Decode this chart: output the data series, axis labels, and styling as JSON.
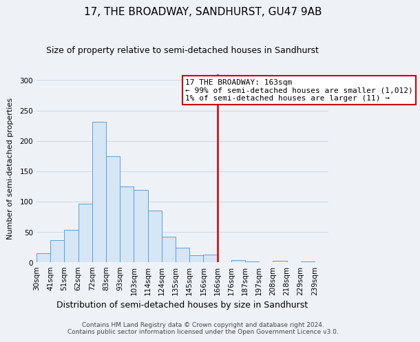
{
  "title": "17, THE BROADWAY, SANDHURST, GU47 9AB",
  "subtitle": "Size of property relative to semi-detached houses in Sandhurst",
  "xlabel": "Distribution of semi-detached houses by size in Sandhurst",
  "ylabel": "Number of semi-detached properties",
  "categories": [
    "30sqm",
    "41sqm",
    "51sqm",
    "62sqm",
    "72sqm",
    "83sqm",
    "93sqm",
    "103sqm",
    "114sqm",
    "124sqm",
    "135sqm",
    "145sqm",
    "156sqm",
    "166sqm",
    "176sqm",
    "187sqm",
    "197sqm",
    "208sqm",
    "218sqm",
    "229sqm",
    "239sqm"
  ],
  "values": [
    15,
    37,
    53,
    97,
    231,
    175,
    125,
    119,
    85,
    42,
    24,
    11,
    13,
    0,
    4,
    1,
    0,
    2,
    0,
    1,
    0
  ],
  "bar_color": "#d6e6f5",
  "bar_edge_color": "#5a9fd4",
  "vline_x_index": 13,
  "vline_color": "#cc0000",
  "annotation_title": "17 THE BROADWAY: 163sqm",
  "annotation_line1": "← 99% of semi-detached houses are smaller (1,012)",
  "annotation_line2": "1% of semi-detached houses are larger (11) →",
  "ylim": [
    0,
    310
  ],
  "yticks": [
    0,
    50,
    100,
    150,
    200,
    250,
    300
  ],
  "footnote1": "Contains HM Land Registry data © Crown copyright and database right 2024.",
  "footnote2": "Contains public sector information licensed under the Open Government Licence v3.0.",
  "background_color": "#eef2f7",
  "grid_color": "#d0d8e8",
  "title_fontsize": 11,
  "subtitle_fontsize": 9,
  "xlabel_fontsize": 9,
  "ylabel_fontsize": 8,
  "tick_fontsize": 7.5,
  "footnote_fontsize": 6.5,
  "annotation_fontsize": 8
}
